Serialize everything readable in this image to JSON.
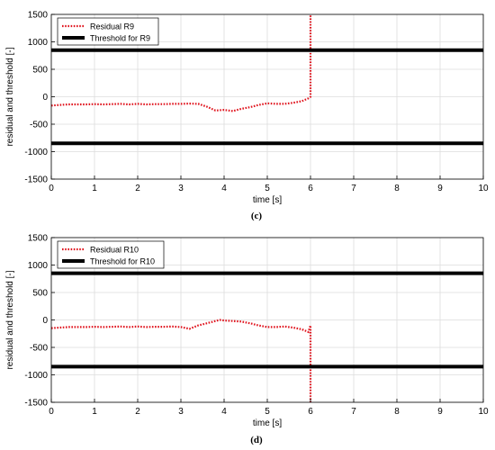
{
  "chart_data": [
    {
      "type": "line",
      "caption": "(c)",
      "xlabel": "time [s]",
      "ylabel": "residual and threshold [-]",
      "xlim": [
        0,
        10
      ],
      "ylim": [
        -1500,
        1500
      ],
      "xticks": [
        "0",
        "1",
        "2",
        "3",
        "4",
        "5",
        "6",
        "7",
        "8",
        "9",
        "10"
      ],
      "yticks": [
        "1500",
        "1000",
        "500",
        "0",
        "-500",
        "-1000",
        "-1500"
      ],
      "grid": true,
      "legend_position": "top-left",
      "series": [
        {
          "name": "Residual R9",
          "style": "dotted",
          "color": "#e0141e",
          "x": [
            0,
            0.2,
            0.4,
            0.6,
            0.8,
            1.0,
            1.2,
            1.4,
            1.6,
            1.8,
            2.0,
            2.2,
            2.4,
            2.6,
            2.8,
            3.0,
            3.2,
            3.4,
            3.6,
            3.8,
            4.0,
            4.2,
            4.4,
            4.6,
            4.8,
            5.0,
            5.2,
            5.4,
            5.6,
            5.8,
            5.95,
            6.0,
            6.0
          ],
          "y": [
            -160,
            -150,
            -140,
            -140,
            -140,
            -135,
            -140,
            -135,
            -130,
            -140,
            -130,
            -140,
            -135,
            -135,
            -130,
            -130,
            -125,
            -130,
            -180,
            -250,
            -240,
            -260,
            -220,
            -190,
            -150,
            -120,
            -130,
            -130,
            -110,
            -80,
            -30,
            0,
            1500
          ]
        },
        {
          "name": "Threshold for R9",
          "style": "solid",
          "color": "#000000",
          "x": [
            0,
            10
          ],
          "y": [
            850,
            850
          ]
        },
        {
          "name": "Threshold for R9 (lower)",
          "style": "solid",
          "color": "#000000",
          "x": [
            0,
            10
          ],
          "y": [
            -850,
            -850
          ]
        }
      ]
    },
    {
      "type": "line",
      "caption": "(d)",
      "xlabel": "time [s]",
      "ylabel": "residual and threshold [-]",
      "xlim": [
        0,
        10
      ],
      "ylim": [
        -1500,
        1500
      ],
      "xticks": [
        "0",
        "1",
        "2",
        "3",
        "4",
        "5",
        "6",
        "7",
        "8",
        "9",
        "10"
      ],
      "yticks": [
        "1500",
        "1000",
        "500",
        "0",
        "-500",
        "-1000",
        "-1500"
      ],
      "grid": true,
      "legend_position": "top-left",
      "series": [
        {
          "name": "Residual R10",
          "style": "dotted",
          "color": "#e0141e",
          "x": [
            0,
            0.2,
            0.4,
            0.6,
            0.8,
            1.0,
            1.2,
            1.4,
            1.6,
            1.8,
            2.0,
            2.2,
            2.4,
            2.6,
            2.8,
            3.0,
            3.2,
            3.4,
            3.6,
            3.8,
            3.9,
            4.0,
            4.2,
            4.4,
            4.6,
            4.8,
            5.0,
            5.2,
            5.4,
            5.6,
            5.8,
            5.95,
            6.0,
            6.0
          ],
          "y": [
            -150,
            -140,
            -130,
            -130,
            -130,
            -125,
            -130,
            -125,
            -120,
            -130,
            -120,
            -130,
            -125,
            -125,
            -120,
            -130,
            -160,
            -100,
            -60,
            -20,
            0,
            -10,
            -20,
            -30,
            -60,
            -100,
            -130,
            -130,
            -120,
            -140,
            -170,
            -220,
            -100,
            -1500
          ]
        },
        {
          "name": "Threshold for R10",
          "style": "solid",
          "color": "#000000",
          "x": [
            0,
            10
          ],
          "y": [
            850,
            850
          ]
        },
        {
          "name": "Threshold for R10 (lower)",
          "style": "solid",
          "color": "#000000",
          "x": [
            0,
            10
          ],
          "y": [
            -850,
            -850
          ]
        }
      ]
    }
  ]
}
